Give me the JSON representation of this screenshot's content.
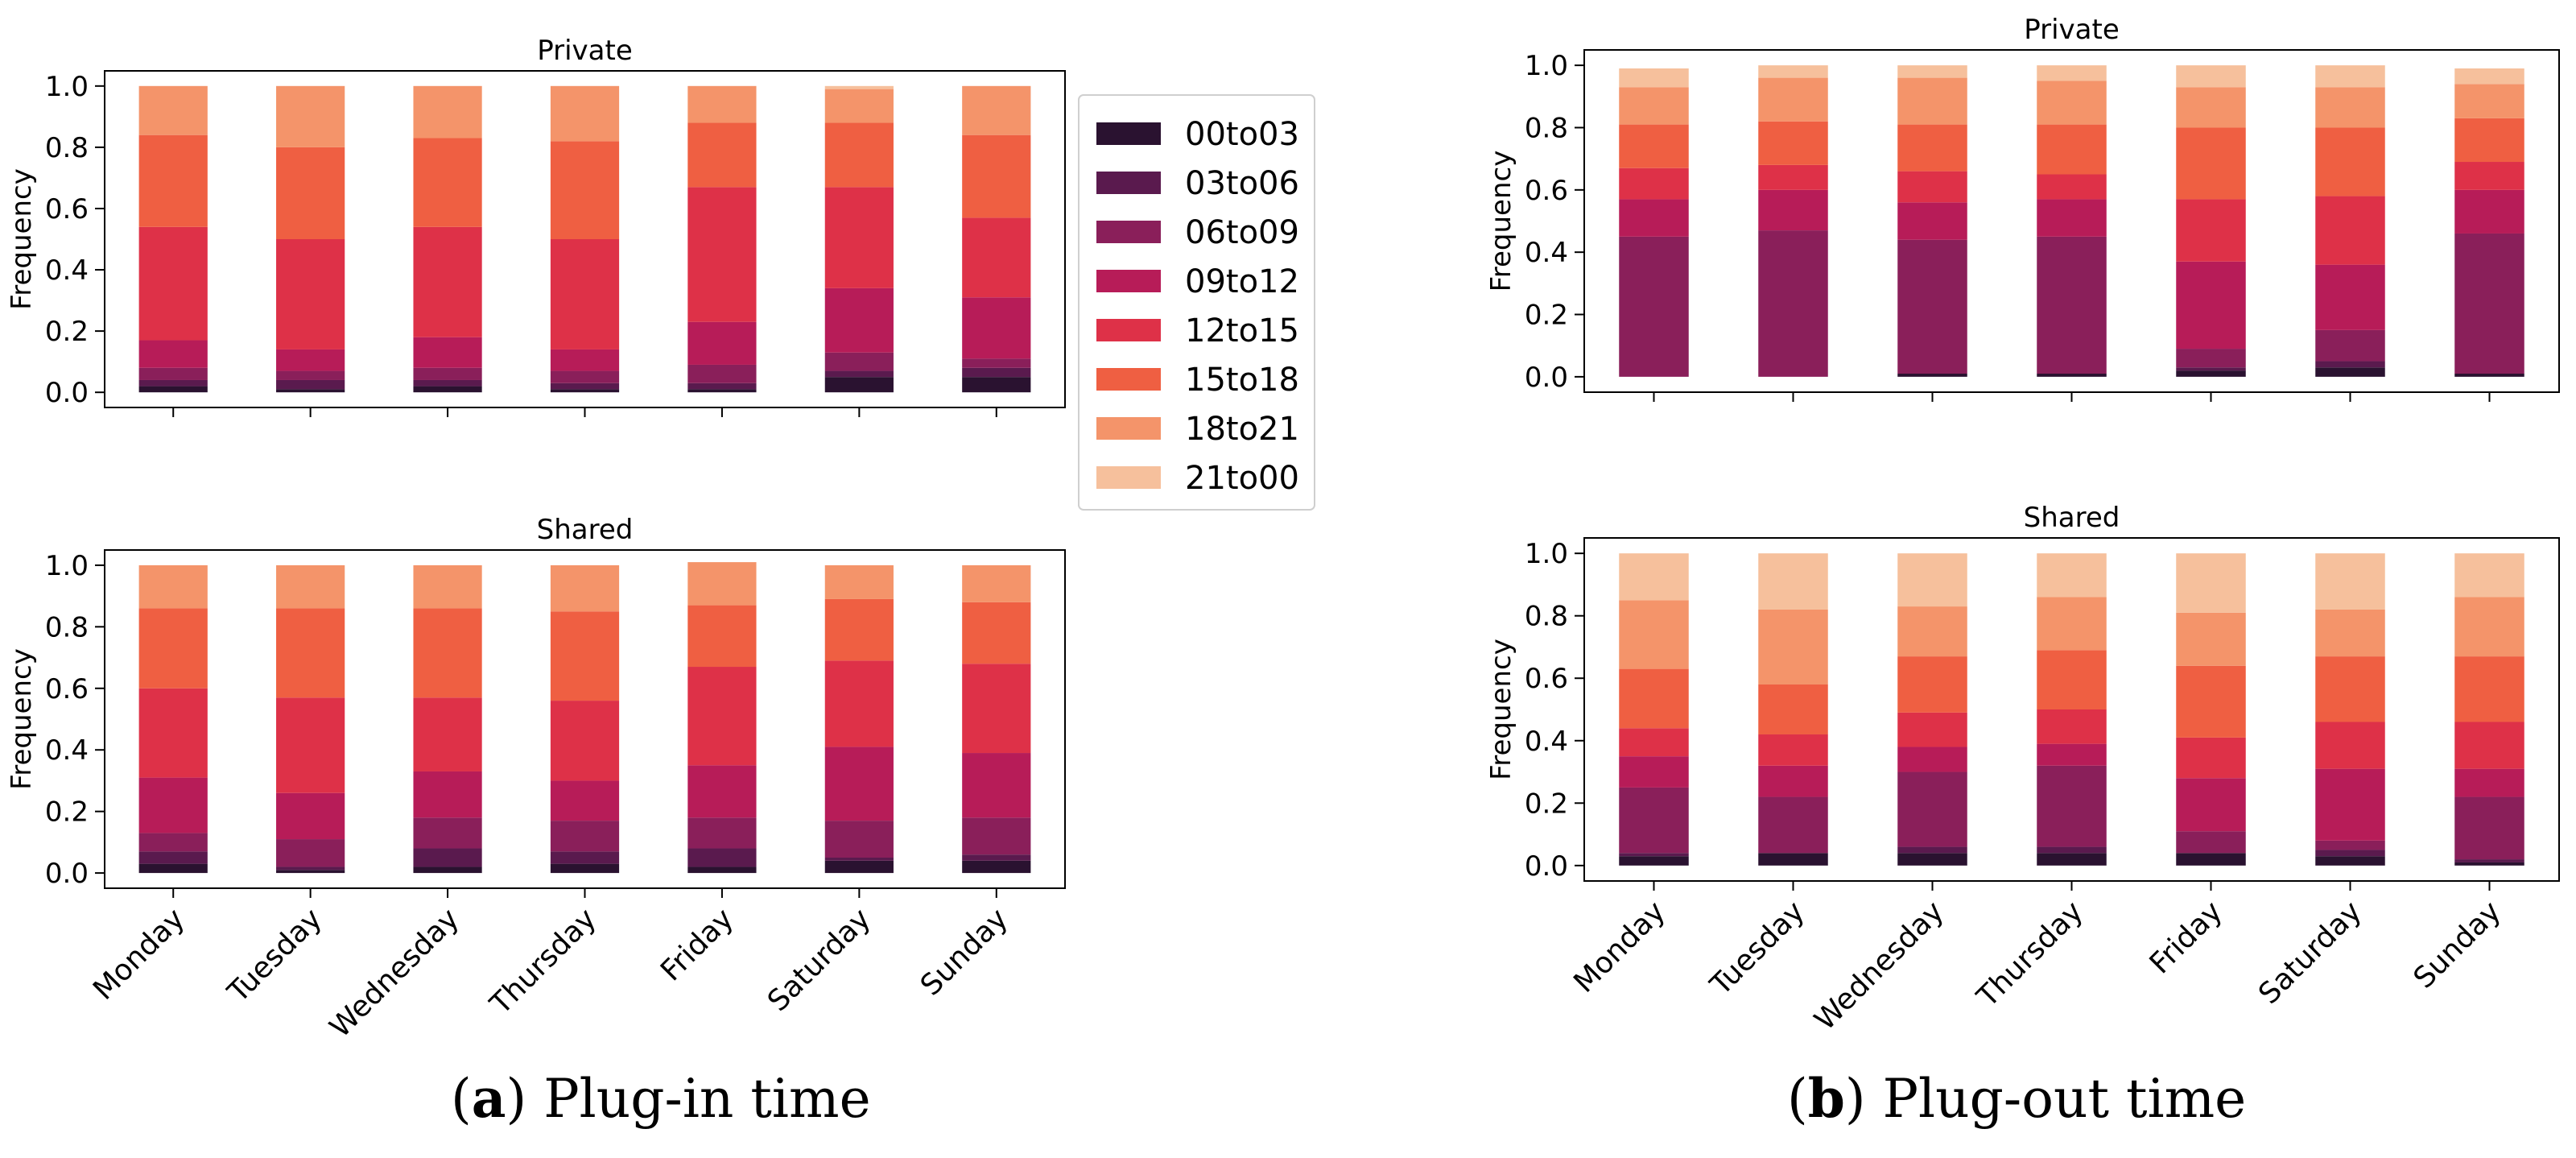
{
  "chart_data": [
    {
      "type": "bar",
      "stacked": true,
      "title": "Private",
      "ylabel": "Frequency",
      "ylim": [
        0,
        1.0
      ],
      "yticks": [
        "0.0",
        "0.2",
        "0.4",
        "0.6",
        "0.8",
        "1.0"
      ],
      "categories": [
        "Monday",
        "Tuesday",
        "Wednesday",
        "Thursday",
        "Friday",
        "Saturday",
        "Sunday"
      ],
      "show_xticklabels": false,
      "series": [
        {
          "name": "00to03",
          "values": [
            0.02,
            0.01,
            0.02,
            0.01,
            0.01,
            0.05,
            0.05
          ]
        },
        {
          "name": "03to06",
          "values": [
            0.02,
            0.03,
            0.02,
            0.02,
            0.02,
            0.02,
            0.03
          ]
        },
        {
          "name": "06to09",
          "values": [
            0.04,
            0.03,
            0.04,
            0.04,
            0.06,
            0.06,
            0.03
          ]
        },
        {
          "name": "09to12",
          "values": [
            0.09,
            0.07,
            0.1,
            0.07,
            0.14,
            0.21,
            0.2
          ]
        },
        {
          "name": "12to15",
          "values": [
            0.37,
            0.36,
            0.36,
            0.36,
            0.44,
            0.33,
            0.26
          ]
        },
        {
          "name": "15to18",
          "values": [
            0.3,
            0.3,
            0.29,
            0.32,
            0.21,
            0.21,
            0.27
          ]
        },
        {
          "name": "18to21",
          "values": [
            0.16,
            0.2,
            0.17,
            0.18,
            0.12,
            0.11,
            0.16
          ]
        },
        {
          "name": "21to00",
          "values": [
            0.0,
            0.0,
            0.0,
            0.0,
            0.0,
            0.01,
            0.0
          ]
        }
      ]
    },
    {
      "type": "bar",
      "stacked": true,
      "title": "Shared",
      "ylabel": "Frequency",
      "ylim": [
        0,
        1.0
      ],
      "yticks": [
        "0.0",
        "0.2",
        "0.4",
        "0.6",
        "0.8",
        "1.0"
      ],
      "categories": [
        "Monday",
        "Tuesday",
        "Wednesday",
        "Thursday",
        "Friday",
        "Saturday",
        "Sunday"
      ],
      "show_xticklabels": true,
      "series": [
        {
          "name": "00to03",
          "values": [
            0.03,
            0.01,
            0.02,
            0.03,
            0.02,
            0.04,
            0.04
          ]
        },
        {
          "name": "03to06",
          "values": [
            0.04,
            0.01,
            0.06,
            0.04,
            0.06,
            0.01,
            0.02
          ]
        },
        {
          "name": "06to09",
          "values": [
            0.06,
            0.09,
            0.1,
            0.1,
            0.1,
            0.12,
            0.12
          ]
        },
        {
          "name": "09to12",
          "values": [
            0.18,
            0.15,
            0.15,
            0.13,
            0.17,
            0.24,
            0.21
          ]
        },
        {
          "name": "12to15",
          "values": [
            0.29,
            0.31,
            0.24,
            0.26,
            0.32,
            0.28,
            0.29
          ]
        },
        {
          "name": "15to18",
          "values": [
            0.26,
            0.29,
            0.29,
            0.29,
            0.2,
            0.2,
            0.2
          ]
        },
        {
          "name": "18to21",
          "values": [
            0.14,
            0.14,
            0.14,
            0.15,
            0.14,
            0.11,
            0.12
          ]
        },
        {
          "name": "21to00",
          "values": [
            0.0,
            0.0,
            0.0,
            0.0,
            0.0,
            0.0,
            0.0
          ]
        }
      ]
    },
    {
      "type": "bar",
      "stacked": true,
      "title": "Private",
      "ylabel": "Frequency",
      "ylim": [
        0,
        1.0
      ],
      "yticks": [
        "0.0",
        "0.2",
        "0.4",
        "0.6",
        "0.8",
        "1.0"
      ],
      "categories": [
        "Monday",
        "Tuesday",
        "Wednesday",
        "Thursday",
        "Friday",
        "Saturday",
        "Sunday"
      ],
      "show_xticklabels": false,
      "series": [
        {
          "name": "00to03",
          "values": [
            0.0,
            0.0,
            0.01,
            0.01,
            0.02,
            0.03,
            0.01
          ]
        },
        {
          "name": "03to06",
          "values": [
            0.0,
            0.0,
            0.0,
            0.0,
            0.01,
            0.02,
            0.0
          ]
        },
        {
          "name": "06to09",
          "values": [
            0.45,
            0.47,
            0.43,
            0.44,
            0.06,
            0.1,
            0.45
          ]
        },
        {
          "name": "09to12",
          "values": [
            0.12,
            0.13,
            0.12,
            0.12,
            0.28,
            0.21,
            0.14
          ]
        },
        {
          "name": "12to15",
          "values": [
            0.1,
            0.08,
            0.1,
            0.08,
            0.2,
            0.22,
            0.09
          ]
        },
        {
          "name": "15to18",
          "values": [
            0.14,
            0.14,
            0.15,
            0.16,
            0.23,
            0.22,
            0.14
          ]
        },
        {
          "name": "18to21",
          "values": [
            0.12,
            0.14,
            0.15,
            0.14,
            0.13,
            0.13,
            0.11
          ]
        },
        {
          "name": "21to00",
          "values": [
            0.06,
            0.04,
            0.04,
            0.05,
            0.07,
            0.07,
            0.05
          ]
        }
      ]
    },
    {
      "type": "bar",
      "stacked": true,
      "title": "Shared",
      "ylabel": "Frequency",
      "ylim": [
        0,
        1.0
      ],
      "yticks": [
        "0.0",
        "0.2",
        "0.4",
        "0.6",
        "0.8",
        "1.0"
      ],
      "categories": [
        "Monday",
        "Tuesday",
        "Wednesday",
        "Thursday",
        "Friday",
        "Saturday",
        "Sunday"
      ],
      "show_xticklabels": true,
      "series": [
        {
          "name": "00to03",
          "values": [
            0.03,
            0.04,
            0.04,
            0.04,
            0.04,
            0.03,
            0.01
          ]
        },
        {
          "name": "03to06",
          "values": [
            0.01,
            0.0,
            0.02,
            0.02,
            0.0,
            0.02,
            0.01
          ]
        },
        {
          "name": "06to09",
          "values": [
            0.21,
            0.18,
            0.24,
            0.26,
            0.07,
            0.03,
            0.2
          ]
        },
        {
          "name": "09to12",
          "values": [
            0.1,
            0.1,
            0.08,
            0.07,
            0.17,
            0.23,
            0.09
          ]
        },
        {
          "name": "12to15",
          "values": [
            0.09,
            0.1,
            0.11,
            0.11,
            0.13,
            0.15,
            0.15
          ]
        },
        {
          "name": "15to18",
          "values": [
            0.19,
            0.16,
            0.18,
            0.19,
            0.23,
            0.21,
            0.21
          ]
        },
        {
          "name": "18to21",
          "values": [
            0.22,
            0.24,
            0.16,
            0.17,
            0.17,
            0.15,
            0.19
          ]
        },
        {
          "name": "21to00",
          "values": [
            0.15,
            0.18,
            0.17,
            0.14,
            0.19,
            0.18,
            0.14
          ]
        }
      ]
    }
  ],
  "legend": {
    "entries": [
      "00to03",
      "03to06",
      "06to09",
      "09to12",
      "12to15",
      "15to18",
      "18to21",
      "21to00"
    ]
  },
  "series_colors": [
    "#2a1230",
    "#5a1a4e",
    "#8a1f5a",
    "#b71c58",
    "#de3148",
    "#ef5f42",
    "#f4946a",
    "#f6c09c"
  ],
  "captions": {
    "a": {
      "letter": "a",
      "text": " Plug-in time"
    },
    "b": {
      "letter": "b",
      "text": " Plug-out time"
    }
  }
}
